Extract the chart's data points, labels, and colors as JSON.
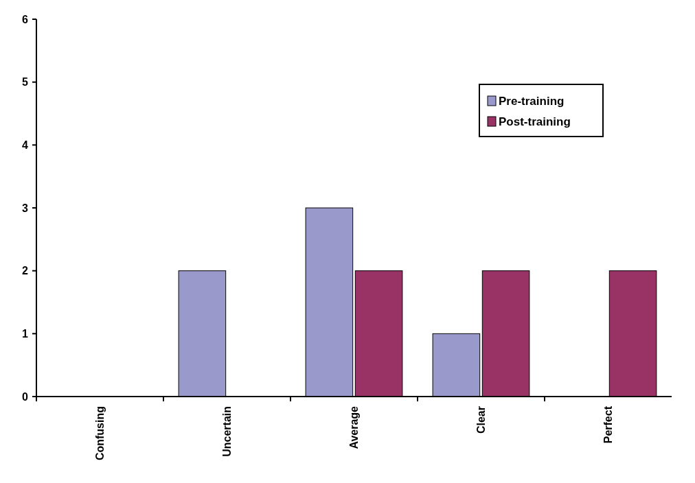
{
  "chart_data": {
    "type": "bar",
    "categories": [
      "Confusing",
      "Uncertain",
      "Average",
      "Clear",
      "Perfect"
    ],
    "series": [
      {
        "name": "Pre-training",
        "color": "#9999cc",
        "values": [
          0,
          2,
          3,
          1,
          0
        ]
      },
      {
        "name": "Post-training",
        "color": "#993366",
        "values": [
          0,
          0,
          2,
          2,
          2
        ]
      }
    ],
    "ylim": [
      0,
      6
    ],
    "yticks": [
      0,
      1,
      2,
      3,
      4,
      5,
      6
    ],
    "legend": "top right"
  }
}
